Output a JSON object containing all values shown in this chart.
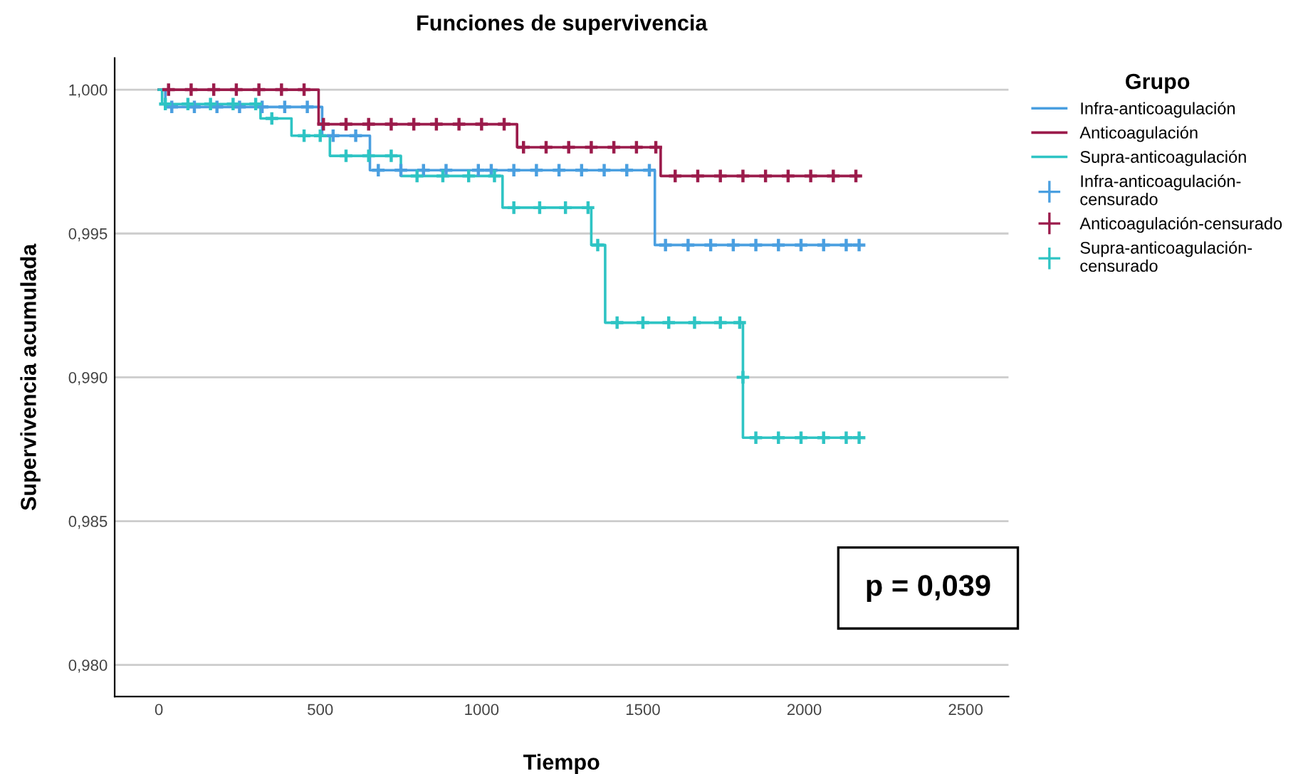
{
  "chart_data": {
    "type": "step",
    "title": "Funciones de supervivencia",
    "xlabel": "Tiempo",
    "ylabel": "Supervivencia acumulada",
    "legend_title": "Grupo",
    "xlim": [
      -137,
      2633
    ],
    "xticks": [
      0,
      500,
      1000,
      1500,
      2000,
      2500
    ],
    "ylim": [
      0.9789,
      1.0011
    ],
    "yticks": [
      {
        "value": 0.98,
        "label": "0,980"
      },
      {
        "value": 0.985,
        "label": "0,985"
      },
      {
        "value": 0.99,
        "label": "0,990"
      },
      {
        "value": 0.995,
        "label": "0,995"
      },
      {
        "value": 1.0,
        "label": "1,000"
      }
    ],
    "grid": "y",
    "legend": "right",
    "annotations": [
      "p = 0,039"
    ],
    "series": [
      {
        "name": "Infra-anticoagulación",
        "color": "#4a9fe0",
        "x": [
          0,
          20,
          506,
          654,
          1537,
          2170
        ],
        "values": [
          1.0,
          0.9994,
          0.9984,
          0.9972,
          0.9946,
          0.9946
        ]
      },
      {
        "name": "Anticoagulación",
        "color": "#9b1b4b",
        "x": [
          0,
          495,
          1110,
          1555,
          2170
        ],
        "values": [
          1.0,
          0.9988,
          0.998,
          0.997,
          0.997
        ]
      },
      {
        "name": "Supra-anticoagulación",
        "color": "#2ec4c4",
        "x": [
          0,
          10,
          315,
          411,
          530,
          750,
          1065,
          1340,
          1383,
          1810,
          2170
        ],
        "values": [
          1.0,
          0.9995,
          0.999,
          0.9984,
          0.9977,
          0.997,
          0.9959,
          0.9946,
          0.9919,
          0.9879,
          0.9879
        ]
      },
      {
        "name": "Infra-anticoagulación-censurado",
        "type": "scatter",
        "marker": "cross",
        "color": "#4a9fe0",
        "x": [
          40,
          110,
          180,
          250,
          320,
          390,
          460,
          540,
          610,
          680,
          750,
          820,
          890,
          990,
          1030,
          1100,
          1170,
          1240,
          1310,
          1380,
          1450,
          1520,
          1570,
          1640,
          1710,
          1780,
          1850,
          1920,
          1990,
          2060,
          2130,
          2170
        ],
        "values": [
          0.9994,
          0.9994,
          0.9994,
          0.9994,
          0.9994,
          0.9994,
          0.9994,
          0.9984,
          0.9984,
          0.9972,
          0.9972,
          0.9972,
          0.9972,
          0.9972,
          0.9972,
          0.9972,
          0.9972,
          0.9972,
          0.9972,
          0.9972,
          0.9972,
          0.9972,
          0.9946,
          0.9946,
          0.9946,
          0.9946,
          0.9946,
          0.9946,
          0.9946,
          0.9946,
          0.9946,
          0.9946
        ]
      },
      {
        "name": "Anticoagulación-censurado",
        "type": "scatter",
        "marker": "cross",
        "color": "#9b1b4b",
        "x": [
          30,
          100,
          170,
          240,
          310,
          380,
          450,
          510,
          580,
          650,
          720,
          790,
          860,
          930,
          1000,
          1070,
          1130,
          1200,
          1270,
          1340,
          1410,
          1480,
          1540,
          1600,
          1670,
          1740,
          1810,
          1880,
          1950,
          2020,
          2090,
          2160
        ],
        "values": [
          1.0,
          1.0,
          1.0,
          1.0,
          1.0,
          1.0,
          1.0,
          0.9988,
          0.9988,
          0.9988,
          0.9988,
          0.9988,
          0.9988,
          0.9988,
          0.9988,
          0.9988,
          0.998,
          0.998,
          0.998,
          0.998,
          0.998,
          0.998,
          0.998,
          0.997,
          0.997,
          0.997,
          0.997,
          0.997,
          0.997,
          0.997,
          0.997,
          0.997
        ]
      },
      {
        "name": "Supra-anticoagulación-censurado",
        "type": "scatter",
        "marker": "cross",
        "color": "#2ec4c4",
        "x": [
          20,
          90,
          160,
          230,
          300,
          350,
          450,
          500,
          580,
          650,
          720,
          800,
          880,
          960,
          1040,
          1100,
          1180,
          1260,
          1330,
          1360,
          1420,
          1500,
          1580,
          1660,
          1740,
          1800,
          1810,
          1850,
          1920,
          1990,
          2060,
          2130,
          2170
        ],
        "values": [
          0.9995,
          0.9995,
          0.9995,
          0.9995,
          0.9995,
          0.999,
          0.9984,
          0.9984,
          0.9977,
          0.9977,
          0.9977,
          0.997,
          0.997,
          0.997,
          0.997,
          0.9959,
          0.9959,
          0.9959,
          0.9959,
          0.9946,
          0.9919,
          0.9919,
          0.9919,
          0.9919,
          0.9919,
          0.9919,
          0.99,
          0.9879,
          0.9879,
          0.9879,
          0.9879,
          0.9879,
          0.9879
        ]
      }
    ]
  }
}
